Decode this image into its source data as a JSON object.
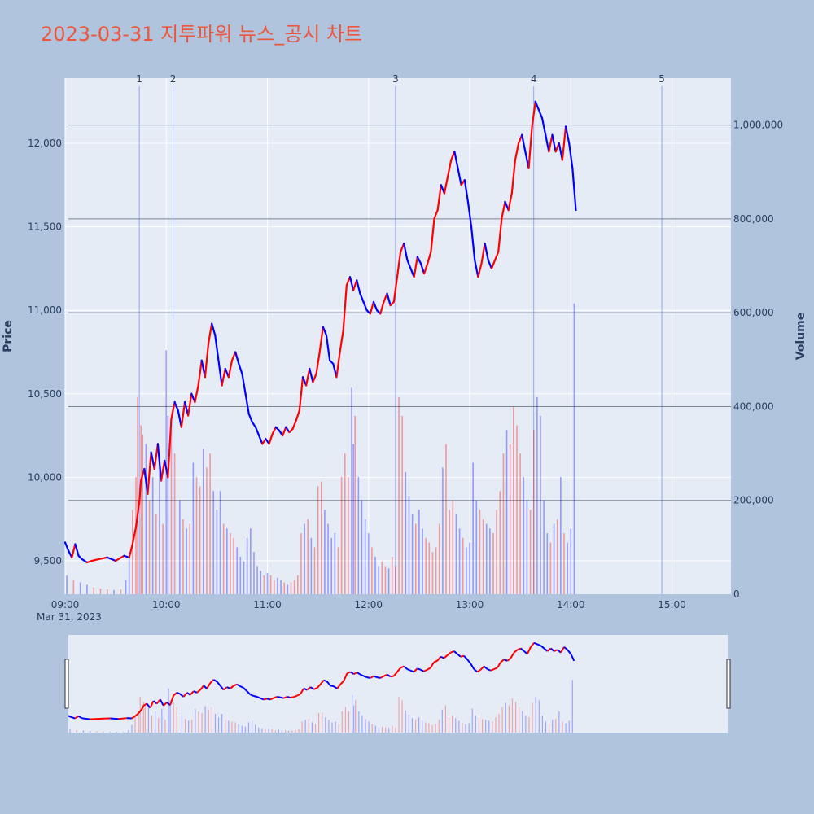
{
  "chart_data": {
    "type": "candlestick",
    "title": "2023-03-31 지투파워 뉴스_공시 차트",
    "ylabel": "Price",
    "y2label": "Volume",
    "date_label": "Mar 31, 2023",
    "x_range_min": [
      540,
      935
    ],
    "ylim": [
      9300,
      12390
    ],
    "y2lim": [
      0,
      1100000
    ],
    "price_ticks": [
      {
        "v": 9500,
        "label": "9,500"
      },
      {
        "v": 10000,
        "label": "10,000"
      },
      {
        "v": 10500,
        "label": "10,500"
      },
      {
        "v": 11000,
        "label": "11,000"
      },
      {
        "v": 11500,
        "label": "11,500"
      },
      {
        "v": 12000,
        "label": "12,000"
      }
    ],
    "volume_ticks": [
      {
        "v": 0,
        "label": "0"
      },
      {
        "v": 200000,
        "label": "200,000"
      },
      {
        "v": 400000,
        "label": "400,000"
      },
      {
        "v": 600000,
        "label": "600,000"
      },
      {
        "v": 800000,
        "label": "800,000"
      },
      {
        "v": 1000000,
        "label": "1,000,000"
      }
    ],
    "x_ticks": [
      {
        "m": 540,
        "label": "09:00"
      },
      {
        "m": 600,
        "label": "10:00"
      },
      {
        "m": 660,
        "label": "11:00"
      },
      {
        "m": 720,
        "label": "12:00"
      },
      {
        "m": 780,
        "label": "13:00"
      },
      {
        "m": 840,
        "label": "14:00"
      },
      {
        "m": 900,
        "label": "15:00"
      }
    ],
    "news_markers": [
      {
        "label": "1",
        "m": 584
      },
      {
        "label": "2",
        "m": 604
      },
      {
        "label": "3",
        "m": 736
      },
      {
        "label": "4",
        "m": 818
      },
      {
        "label": "5",
        "m": 894
      }
    ],
    "price_path": [
      [
        540,
        9610
      ],
      [
        542,
        9560
      ],
      [
        544,
        9520
      ],
      [
        546,
        9600
      ],
      [
        548,
        9530
      ],
      [
        550,
        9510
      ],
      [
        553,
        9490
      ],
      [
        556,
        9500
      ],
      [
        560,
        9510
      ],
      [
        565,
        9520
      ],
      [
        570,
        9500
      ],
      [
        575,
        9530
      ],
      [
        578,
        9520
      ],
      [
        580,
        9600
      ],
      [
        582,
        9700
      ],
      [
        584,
        9850
      ],
      [
        585,
        9980
      ],
      [
        587,
        10050
      ],
      [
        589,
        9900
      ],
      [
        591,
        10150
      ],
      [
        593,
        10050
      ],
      [
        595,
        10200
      ],
      [
        597,
        9980
      ],
      [
        599,
        10100
      ],
      [
        601,
        10000
      ],
      [
        603,
        10350
      ],
      [
        605,
        10450
      ],
      [
        607,
        10400
      ],
      [
        609,
        10300
      ],
      [
        611,
        10450
      ],
      [
        613,
        10370
      ],
      [
        615,
        10500
      ],
      [
        617,
        10450
      ],
      [
        619,
        10550
      ],
      [
        621,
        10700
      ],
      [
        623,
        10600
      ],
      [
        625,
        10800
      ],
      [
        627,
        10920
      ],
      [
        629,
        10850
      ],
      [
        631,
        10700
      ],
      [
        633,
        10550
      ],
      [
        635,
        10650
      ],
      [
        637,
        10600
      ],
      [
        639,
        10700
      ],
      [
        641,
        10750
      ],
      [
        643,
        10680
      ],
      [
        645,
        10620
      ],
      [
        647,
        10500
      ],
      [
        649,
        10380
      ],
      [
        651,
        10330
      ],
      [
        653,
        10300
      ],
      [
        655,
        10250
      ],
      [
        657,
        10200
      ],
      [
        659,
        10230
      ],
      [
        661,
        10200
      ],
      [
        663,
        10260
      ],
      [
        665,
        10300
      ],
      [
        667,
        10280
      ],
      [
        669,
        10250
      ],
      [
        671,
        10300
      ],
      [
        673,
        10270
      ],
      [
        675,
        10290
      ],
      [
        677,
        10340
      ],
      [
        679,
        10400
      ],
      [
        681,
        10600
      ],
      [
        683,
        10550
      ],
      [
        685,
        10650
      ],
      [
        687,
        10570
      ],
      [
        689,
        10620
      ],
      [
        691,
        10750
      ],
      [
        693,
        10900
      ],
      [
        695,
        10850
      ],
      [
        697,
        10700
      ],
      [
        699,
        10680
      ],
      [
        701,
        10600
      ],
      [
        703,
        10750
      ],
      [
        705,
        10880
      ],
      [
        707,
        11150
      ],
      [
        709,
        11200
      ],
      [
        711,
        11120
      ],
      [
        713,
        11180
      ],
      [
        715,
        11100
      ],
      [
        717,
        11050
      ],
      [
        719,
        11000
      ],
      [
        721,
        10980
      ],
      [
        723,
        11050
      ],
      [
        725,
        11000
      ],
      [
        727,
        10980
      ],
      [
        729,
        11050
      ],
      [
        731,
        11100
      ],
      [
        733,
        11030
      ],
      [
        735,
        11050
      ],
      [
        737,
        11200
      ],
      [
        739,
        11350
      ],
      [
        741,
        11400
      ],
      [
        743,
        11300
      ],
      [
        745,
        11250
      ],
      [
        747,
        11200
      ],
      [
        749,
        11320
      ],
      [
        751,
        11280
      ],
      [
        753,
        11220
      ],
      [
        755,
        11280
      ],
      [
        757,
        11350
      ],
      [
        759,
        11550
      ],
      [
        761,
        11600
      ],
      [
        763,
        11750
      ],
      [
        765,
        11700
      ],
      [
        767,
        11800
      ],
      [
        769,
        11900
      ],
      [
        771,
        11950
      ],
      [
        773,
        11850
      ],
      [
        775,
        11750
      ],
      [
        777,
        11780
      ],
      [
        779,
        11650
      ],
      [
        781,
        11500
      ],
      [
        783,
        11300
      ],
      [
        785,
        11200
      ],
      [
        787,
        11280
      ],
      [
        789,
        11400
      ],
      [
        791,
        11300
      ],
      [
        793,
        11250
      ],
      [
        795,
        11300
      ],
      [
        797,
        11350
      ],
      [
        799,
        11550
      ],
      [
        801,
        11650
      ],
      [
        803,
        11600
      ],
      [
        805,
        11700
      ],
      [
        807,
        11900
      ],
      [
        809,
        12000
      ],
      [
        811,
        12050
      ],
      [
        813,
        11950
      ],
      [
        815,
        11850
      ],
      [
        817,
        12100
      ],
      [
        819,
        12250
      ],
      [
        821,
        12200
      ],
      [
        823,
        12150
      ],
      [
        825,
        12050
      ],
      [
        827,
        11950
      ],
      [
        829,
        12050
      ],
      [
        831,
        11950
      ],
      [
        833,
        12000
      ],
      [
        835,
        11900
      ],
      [
        837,
        12100
      ],
      [
        839,
        12000
      ],
      [
        841,
        11850
      ],
      [
        843,
        11600
      ]
    ],
    "volume_bars": [
      [
        541,
        40000
      ],
      [
        545,
        30000
      ],
      [
        549,
        25000
      ],
      [
        553,
        20000
      ],
      [
        557,
        15000
      ],
      [
        561,
        12000
      ],
      [
        565,
        10000
      ],
      [
        569,
        9000
      ],
      [
        573,
        10000
      ],
      [
        576,
        30000
      ],
      [
        578,
        90000
      ],
      [
        580,
        180000
      ],
      [
        582,
        250000
      ],
      [
        583,
        420000
      ],
      [
        585,
        360000
      ],
      [
        586,
        340000
      ],
      [
        588,
        320000
      ],
      [
        590,
        200000
      ],
      [
        592,
        250000
      ],
      [
        594,
        170000
      ],
      [
        596,
        280000
      ],
      [
        598,
        150000
      ],
      [
        600,
        520000
      ],
      [
        601,
        380000
      ],
      [
        603,
        350000
      ],
      [
        605,
        300000
      ],
      [
        608,
        200000
      ],
      [
        610,
        160000
      ],
      [
        612,
        140000
      ],
      [
        614,
        150000
      ],
      [
        616,
        280000
      ],
      [
        618,
        250000
      ],
      [
        620,
        230000
      ],
      [
        622,
        310000
      ],
      [
        624,
        270000
      ],
      [
        626,
        300000
      ],
      [
        628,
        220000
      ],
      [
        630,
        180000
      ],
      [
        632,
        220000
      ],
      [
        634,
        150000
      ],
      [
        636,
        140000
      ],
      [
        638,
        130000
      ],
      [
        640,
        120000
      ],
      [
        642,
        100000
      ],
      [
        644,
        80000
      ],
      [
        646,
        70000
      ],
      [
        648,
        120000
      ],
      [
        650,
        140000
      ],
      [
        652,
        90000
      ],
      [
        654,
        60000
      ],
      [
        656,
        50000
      ],
      [
        658,
        40000
      ],
      [
        660,
        45000
      ],
      [
        662,
        40000
      ],
      [
        664,
        30000
      ],
      [
        666,
        35000
      ],
      [
        668,
        30000
      ],
      [
        670,
        25000
      ],
      [
        672,
        20000
      ],
      [
        674,
        25000
      ],
      [
        676,
        30000
      ],
      [
        678,
        40000
      ],
      [
        680,
        130000
      ],
      [
        682,
        150000
      ],
      [
        684,
        160000
      ],
      [
        686,
        120000
      ],
      [
        688,
        100000
      ],
      [
        690,
        230000
      ],
      [
        692,
        240000
      ],
      [
        694,
        180000
      ],
      [
        696,
        150000
      ],
      [
        698,
        120000
      ],
      [
        700,
        130000
      ],
      [
        702,
        100000
      ],
      [
        704,
        250000
      ],
      [
        706,
        300000
      ],
      [
        708,
        250000
      ],
      [
        710,
        440000
      ],
      [
        711,
        320000
      ],
      [
        712,
        380000
      ],
      [
        714,
        250000
      ],
      [
        716,
        200000
      ],
      [
        718,
        160000
      ],
      [
        720,
        130000
      ],
      [
        722,
        100000
      ],
      [
        724,
        80000
      ],
      [
        726,
        60000
      ],
      [
        728,
        70000
      ],
      [
        730,
        60000
      ],
      [
        732,
        55000
      ],
      [
        734,
        80000
      ],
      [
        736,
        60000
      ],
      [
        738,
        420000
      ],
      [
        740,
        380000
      ],
      [
        742,
        260000
      ],
      [
        744,
        210000
      ],
      [
        746,
        170000
      ],
      [
        748,
        150000
      ],
      [
        750,
        180000
      ],
      [
        752,
        140000
      ],
      [
        754,
        120000
      ],
      [
        756,
        110000
      ],
      [
        758,
        90000
      ],
      [
        760,
        100000
      ],
      [
        762,
        150000
      ],
      [
        764,
        270000
      ],
      [
        766,
        320000
      ],
      [
        768,
        180000
      ],
      [
        770,
        200000
      ],
      [
        772,
        170000
      ],
      [
        774,
        140000
      ],
      [
        776,
        120000
      ],
      [
        778,
        100000
      ],
      [
        780,
        110000
      ],
      [
        782,
        280000
      ],
      [
        784,
        200000
      ],
      [
        786,
        180000
      ],
      [
        788,
        160000
      ],
      [
        790,
        150000
      ],
      [
        792,
        140000
      ],
      [
        794,
        130000
      ],
      [
        796,
        180000
      ],
      [
        798,
        220000
      ],
      [
        800,
        300000
      ],
      [
        802,
        350000
      ],
      [
        804,
        320000
      ],
      [
        806,
        400000
      ],
      [
        808,
        360000
      ],
      [
        810,
        300000
      ],
      [
        812,
        250000
      ],
      [
        814,
        200000
      ],
      [
        816,
        180000
      ],
      [
        818,
        350000
      ],
      [
        820,
        420000
      ],
      [
        822,
        380000
      ],
      [
        824,
        200000
      ],
      [
        826,
        130000
      ],
      [
        828,
        110000
      ],
      [
        830,
        150000
      ],
      [
        832,
        160000
      ],
      [
        834,
        250000
      ],
      [
        836,
        130000
      ],
      [
        838,
        110000
      ],
      [
        840,
        140000
      ],
      [
        842,
        620000
      ]
    ],
    "colors": {
      "up": "#ff0000",
      "down": "#0000ff",
      "title": "#ef553b",
      "plot_bg": "#e5ecf6",
      "page_bg": "#b0c4de",
      "marker_line": "#4a6cf0"
    }
  }
}
